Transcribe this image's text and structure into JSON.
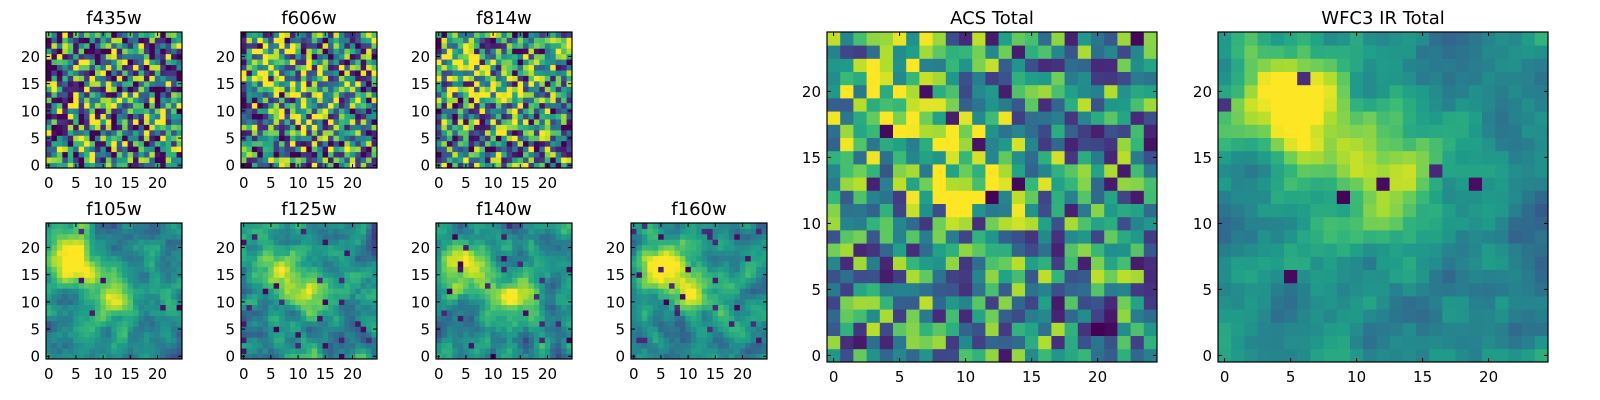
{
  "chart_data": [
    {
      "type": "heatmap",
      "title": "f435w",
      "size": 25,
      "xticks": [
        0,
        5,
        10,
        15,
        20
      ],
      "yticks": [
        0,
        5,
        10,
        15,
        20
      ],
      "xlim": [
        0,
        25
      ],
      "ylim": [
        0,
        25
      ],
      "colormap": "viridis",
      "seed": 11,
      "smooth": 0,
      "peaks": [
        {
          "x": 8,
          "y": 12,
          "amp": 0.15
        }
      ],
      "noise": 0.55,
      "sparse_dark": 0.05
    },
    {
      "type": "heatmap",
      "title": "f606w",
      "size": 25,
      "xticks": [
        0,
        5,
        10,
        15,
        20
      ],
      "yticks": [
        0,
        5,
        10,
        15,
        20
      ],
      "xlim": [
        0,
        25
      ],
      "ylim": [
        0,
        25
      ],
      "colormap": "viridis",
      "seed": 23,
      "smooth": 0,
      "peaks": [
        {
          "x": 5,
          "y": 18,
          "amp": 0.4
        },
        {
          "x": 12,
          "y": 11,
          "amp": 0.3
        }
      ],
      "noise": 0.5,
      "sparse_dark": 0.06
    },
    {
      "type": "heatmap",
      "title": "f814w",
      "size": 25,
      "xticks": [
        0,
        5,
        10,
        15,
        20
      ],
      "yticks": [
        0,
        5,
        10,
        15,
        20
      ],
      "xlim": [
        0,
        25
      ],
      "ylim": [
        0,
        25
      ],
      "colormap": "viridis",
      "seed": 37,
      "smooth": 0,
      "peaks": [
        {
          "x": 5,
          "y": 18,
          "amp": 0.45
        },
        {
          "x": 12,
          "y": 11,
          "amp": 0.3
        }
      ],
      "noise": 0.5,
      "sparse_dark": 0.05
    },
    {
      "type": "heatmap",
      "title": "f105w",
      "size": 25,
      "xticks": [
        0,
        5,
        10,
        15,
        20
      ],
      "yticks": [
        0,
        5,
        10,
        15,
        20
      ],
      "xlim": [
        0,
        25
      ],
      "ylim": [
        0,
        25
      ],
      "colormap": "viridis",
      "seed": 41,
      "smooth": 1,
      "peaks": [
        {
          "x": 4,
          "y": 18,
          "amp": 0.6
        },
        {
          "x": 12,
          "y": 11,
          "amp": 0.45
        }
      ],
      "noise": 0.35,
      "sparse_dark": 0.02
    },
    {
      "type": "heatmap",
      "title": "f125w",
      "size": 25,
      "xticks": [
        0,
        5,
        10,
        15,
        20
      ],
      "yticks": [
        0,
        5,
        10,
        15,
        20
      ],
      "xlim": [
        0,
        25
      ],
      "ylim": [
        0,
        25
      ],
      "colormap": "viridis",
      "seed": 53,
      "smooth": 1,
      "peaks": [
        {
          "x": 6,
          "y": 16,
          "amp": 0.45
        },
        {
          "x": 13,
          "y": 11,
          "amp": 0.35
        }
      ],
      "noise": 0.4,
      "sparse_dark": 0.03
    },
    {
      "type": "heatmap",
      "title": "f140w",
      "size": 25,
      "xticks": [
        0,
        5,
        10,
        15,
        20
      ],
      "yticks": [
        0,
        5,
        10,
        15,
        20
      ],
      "xlim": [
        0,
        25
      ],
      "ylim": [
        0,
        25
      ],
      "colormap": "viridis",
      "seed": 67,
      "smooth": 1,
      "peaks": [
        {
          "x": 5,
          "y": 17,
          "amp": 0.5
        },
        {
          "x": 14,
          "y": 11,
          "amp": 0.4
        }
      ],
      "noise": 0.4,
      "sparse_dark": 0.03
    },
    {
      "type": "heatmap",
      "title": "f160w",
      "size": 25,
      "xticks": [
        0,
        5,
        10,
        15,
        20
      ],
      "yticks": [
        0,
        5,
        10,
        15,
        20
      ],
      "xlim": [
        0,
        25
      ],
      "ylim": [
        0,
        25
      ],
      "colormap": "viridis",
      "seed": 79,
      "smooth": 1,
      "peaks": [
        {
          "x": 5,
          "y": 17,
          "amp": 0.6
        },
        {
          "x": 11,
          "y": 12,
          "amp": 0.45
        }
      ],
      "noise": 0.35,
      "sparse_dark": 0.04
    },
    {
      "type": "heatmap",
      "title": "ACS Total",
      "size": 25,
      "xticks": [
        0,
        5,
        10,
        15,
        20
      ],
      "yticks": [
        0,
        5,
        10,
        15,
        20
      ],
      "xlim": [
        0,
        25
      ],
      "ylim": [
        0,
        25
      ],
      "colormap": "viridis",
      "seed": 97,
      "smooth": 0,
      "peaks": [
        {
          "x": 5,
          "y": 19,
          "amp": 0.45
        },
        {
          "x": 11,
          "y": 14,
          "amp": 0.4
        }
      ],
      "noise": 0.38,
      "sparse_dark": 0.035
    },
    {
      "type": "heatmap",
      "title": "WFC3 IR Total",
      "size": 25,
      "xticks": [
        0,
        5,
        10,
        15,
        20
      ],
      "yticks": [
        0,
        5,
        10,
        15,
        20
      ],
      "xlim": [
        0,
        25
      ],
      "ylim": [
        0,
        25
      ],
      "colormap": "viridis",
      "seed": 113,
      "smooth": 1,
      "peaks": [
        {
          "x": 5,
          "y": 19,
          "amp": 0.65
        },
        {
          "x": 12,
          "y": 13,
          "amp": 0.45
        }
      ],
      "noise": 0.28,
      "sparse_dark": 0.015
    }
  ]
}
